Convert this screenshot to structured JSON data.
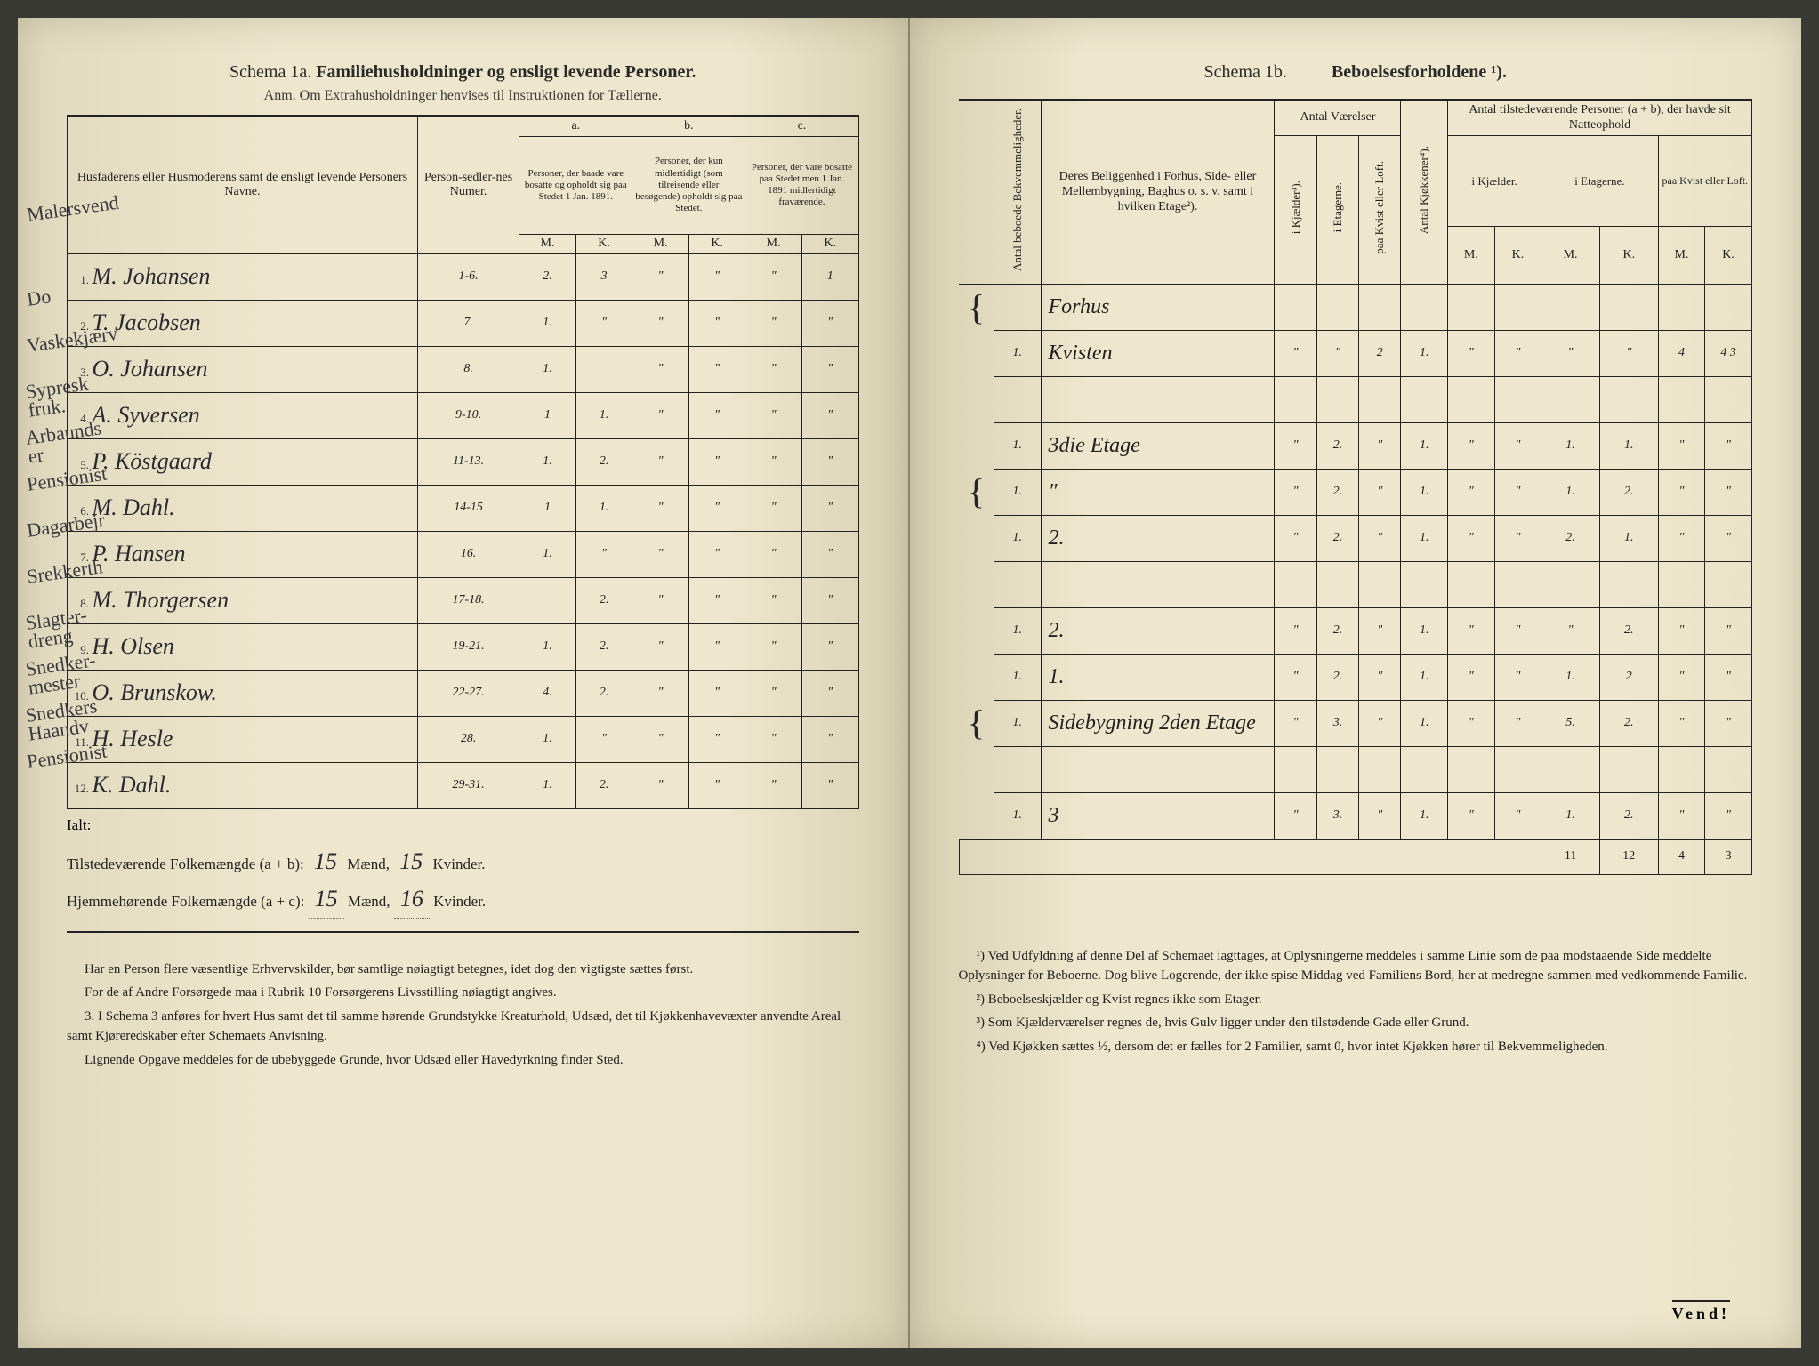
{
  "left": {
    "schema_label": "Schema 1a.",
    "schema_name": "Familiehusholdninger og ensligt levende Personer.",
    "anm": "Anm. Om Extrahusholdninger henvises til Instruktionen for Tællerne.",
    "headers": {
      "name": "Husfaderens eller Husmoderens samt de ensligt levende Personers Navne.",
      "personsedler": "Person-sedler-nes Numer.",
      "a_label": "a.",
      "a_text": "Personer, der baade vare bosatte og opholdt sig paa Stedet 1 Jan. 1891.",
      "b_label": "b.",
      "b_text": "Personer, der kun midlertidigt (som tilreisende eller besøgende) opholdt sig paa Stedet.",
      "c_label": "c.",
      "c_text": "Personer, der vare bosatte paa Stedet men 1 Jan. 1891 midlertidigt fraværende.",
      "m": "M.",
      "k": "K."
    },
    "corner_note": "Malersvend",
    "rows": [
      {
        "annot": "",
        "n": "1.",
        "name": "M. Johansen",
        "ps": "1-6.",
        "aM": "2.",
        "aK": "3",
        "bM": "\"",
        "bK": "\"",
        "cM": "\"",
        "cK": "1"
      },
      {
        "annot": "Do",
        "n": "2.",
        "name": "T. Jacobsen",
        "ps": "7.",
        "aM": "1.",
        "aK": "\"",
        "bM": "\"",
        "bK": "\"",
        "cM": "\"",
        "cK": "\""
      },
      {
        "annot": "Vaskekjærv",
        "n": "3.",
        "name": "O. Johansen",
        "ps": "8.",
        "aM": "1.",
        "aK": "",
        "bM": "\"",
        "bK": "\"",
        "cM": "\"",
        "cK": "\""
      },
      {
        "annot": "Sypresk fruk.",
        "n": "4.",
        "name": "A. Syversen",
        "ps": "9-10.",
        "aM": "1",
        "aK": "1.",
        "bM": "\"",
        "bK": "\"",
        "cM": "\"",
        "cK": "\""
      },
      {
        "annot": "Arbaunds er",
        "n": "5.",
        "name": "P. Köstgaard",
        "ps": "11-13.",
        "aM": "1.",
        "aK": "2.",
        "bM": "\"",
        "bK": "\"",
        "cM": "\"",
        "cK": "\""
      },
      {
        "annot": "Pensionist",
        "n": "6.",
        "name": "M. Dahl.",
        "ps": "14-15",
        "aM": "1",
        "aK": "1.",
        "bM": "\"",
        "bK": "\"",
        "cM": "\"",
        "cK": "\""
      },
      {
        "annot": "Dagarbejr",
        "n": "7.",
        "name": "P. Hansen",
        "ps": "16.",
        "aM": "1.",
        "aK": "\"",
        "bM": "\"",
        "bK": "\"",
        "cM": "\"",
        "cK": "\""
      },
      {
        "annot": "Srekkerth",
        "n": "8.",
        "name": "M. Thorgersen",
        "ps": "17-18.",
        "aM": "",
        "aK": "2.",
        "bM": "\"",
        "bK": "\"",
        "cM": "\"",
        "cK": "\""
      },
      {
        "annot": "Slagter-dreng",
        "n": "9.",
        "name": "H. Olsen",
        "ps": "19-21.",
        "aM": "1.",
        "aK": "2.",
        "bM": "\"",
        "bK": "\"",
        "cM": "\"",
        "cK": "\""
      },
      {
        "annot": "Snedker-mester",
        "n": "10.",
        "name": "O. Brunskow.",
        "ps": "22-27.",
        "aM": "4.",
        "aK": "2.",
        "bM": "\"",
        "bK": "\"",
        "cM": "\"",
        "cK": "\""
      },
      {
        "annot": "Snedkers Haandv",
        "n": "11.",
        "name": "H. Hesle",
        "ps": "28.",
        "aM": "1.",
        "aK": "\"",
        "bM": "\"",
        "bK": "\"",
        "cM": "\"",
        "cK": "\""
      },
      {
        "annot": "Pensionist",
        "n": "12.",
        "name": "K. Dahl.",
        "ps": "29-31.",
        "aM": "1.",
        "aK": "2.",
        "bM": "\"",
        "bK": "\"",
        "cM": "\"",
        "cK": "\""
      }
    ],
    "ialt": "Ialt:",
    "totals": {
      "line1_label": "Tilstedeværende Folkemængde (a + b):",
      "line1_m": "15",
      "line1_mlabel": "Mænd,",
      "line1_k": "15",
      "line1_klabel": "Kvinder.",
      "line2_label": "Hjemmehørende Folkemængde (a + c):",
      "line2_m": "15",
      "line2_k": "16"
    },
    "footnotes": [
      "Har en Person flere væsentlige Erhvervskilder, bør samtlige nøiagtigt betegnes, idet dog den vigtigste sættes først.",
      "For de af Andre Forsørgede maa i Rubrik 10 Forsørgerens Livsstilling nøiagtigt angives.",
      "3. I Schema 3 anføres for hvert Hus samt det til samme hørende Grundstykke Kreaturhold, Udsæd, det til Kjøkkenhavevæxter anvendte Areal samt Kjøreredskaber efter Schemaets Anvisning.",
      "Lignende Opgave meddeles for de ubebyggede Grunde, hvor Udsæd eller Havedyrkning finder Sted."
    ]
  },
  "right": {
    "schema_label": "Schema 1b.",
    "schema_name": "Beboelsesforholdene ¹).",
    "headers": {
      "bekv": "Antal beboede Bekvemmeligheder.",
      "belig": "Deres Beliggenhed i Forhus, Side- eller Mellembygning, Baghus o. s. v. samt i hvilken Etage²).",
      "vaer": "Antal Værelser",
      "vaer_kj": "i Kjælder³).",
      "vaer_et": "i Etagerne.",
      "vaer_kv": "paa Kvist eller Loft.",
      "kjok": "Antal Kjøkkener⁴).",
      "tilst": "Antal tilstedeværende Personer (a + b), der havde sit Natteophold",
      "t_kj": "i Kjælder.",
      "t_et": "i Etagerne.",
      "t_kv": "paa Kvist eller Loft.",
      "m": "M.",
      "k": "K."
    },
    "rows": [
      {
        "br": "{",
        "n": "",
        "loc": "Forhus",
        "kj": "",
        "et": "",
        "kv": "",
        "kk": "",
        "km": "",
        "kkk": "",
        "em": "",
        "ek": "",
        "vm": "",
        "vk": ""
      },
      {
        "br": "",
        "n": "1.",
        "loc": "Kvisten",
        "kj": "\"",
        "et": "\"",
        "kv": "2",
        "kk": "1.",
        "km": "\"",
        "kkk": "\"",
        "em": "\"",
        "ek": "\"",
        "vm": "4",
        "vk": "4 3"
      },
      {
        "br": "",
        "n": "",
        "loc": "",
        "kj": "",
        "et": "",
        "kv": "",
        "kk": "",
        "km": "",
        "kkk": "",
        "em": "",
        "ek": "",
        "vm": "",
        "vk": ""
      },
      {
        "br": "",
        "n": "1.",
        "loc": "3die Etage",
        "kj": "\"",
        "et": "2.",
        "kv": "\"",
        "kk": "1.",
        "km": "\"",
        "kkk": "\"",
        "em": "1.",
        "ek": "1.",
        "vm": "\"",
        "vk": "\""
      },
      {
        "br": "{",
        "n": "1.",
        "loc": "\"",
        "kj": "\"",
        "et": "2.",
        "kv": "\"",
        "kk": "1.",
        "km": "\"",
        "kkk": "\"",
        "em": "1.",
        "ek": "2.",
        "vm": "\"",
        "vk": "\""
      },
      {
        "br": "",
        "n": "1.",
        "loc": "2.",
        "kj": "\"",
        "et": "2.",
        "kv": "\"",
        "kk": "1.",
        "km": "\"",
        "kkk": "\"",
        "em": "2.",
        "ek": "1.",
        "vm": "\"",
        "vk": "\""
      },
      {
        "br": "",
        "n": "",
        "loc": "",
        "kj": "",
        "et": "",
        "kv": "",
        "kk": "",
        "km": "",
        "kkk": "",
        "em": "",
        "ek": "",
        "vm": "",
        "vk": ""
      },
      {
        "br": "",
        "n": "1.",
        "loc": "2.",
        "kj": "\"",
        "et": "2.",
        "kv": "\"",
        "kk": "1.",
        "km": "\"",
        "kkk": "\"",
        "em": "\"",
        "ek": "2.",
        "vm": "\"",
        "vk": "\""
      },
      {
        "br": "",
        "n": "1.",
        "loc": "1.",
        "kj": "\"",
        "et": "2.",
        "kv": "\"",
        "kk": "1.",
        "km": "\"",
        "kkk": "\"",
        "em": "1.",
        "ek": "2",
        "vm": "\"",
        "vk": "\""
      },
      {
        "br": "{",
        "n": "1.",
        "loc": "Sidebygning 2den Etage",
        "kj": "\"",
        "et": "3.",
        "kv": "\"",
        "kk": "1.",
        "km": "\"",
        "kkk": "\"",
        "em": "5.",
        "ek": "2.",
        "vm": "\"",
        "vk": "\""
      },
      {
        "br": "",
        "n": "",
        "loc": "",
        "kj": "",
        "et": "",
        "kv": "",
        "kk": "",
        "km": "",
        "kkk": "",
        "em": "",
        "ek": "",
        "vm": "",
        "vk": ""
      },
      {
        "br": "",
        "n": "1.",
        "loc": "3",
        "kj": "\"",
        "et": "3.",
        "kv": "\"",
        "kk": "1.",
        "km": "\"",
        "kkk": "\"",
        "em": "1.",
        "ek": "2.",
        "vm": "\"",
        "vk": "\""
      }
    ],
    "sums": {
      "em": "11",
      "ek": "12",
      "vm": "4",
      "vk": "3"
    },
    "footnotes": [
      "¹) Ved Udfyldning af denne Del af Schemaet iagttages, at Oplysningerne meddeles i samme Linie som de paa modstaaende Side meddelte Oplysninger for Beboerne. Dog blive Logerende, der ikke spise Middag ved Familiens Bord, her at medregne sammen med vedkommende Familie.",
      "²) Beboelseskjælder og Kvist regnes ikke som Etager.",
      "³) Som Kjælderværelser regnes de, hvis Gulv ligger under den tilstødende Gade eller Grund.",
      "⁴) Ved Kjøkken sættes ½, dersom det er fælles for 2 Familier, samt 0, hvor intet Kjøkken hører til Bekvemmeligheden."
    ],
    "vend": "Vend!"
  }
}
